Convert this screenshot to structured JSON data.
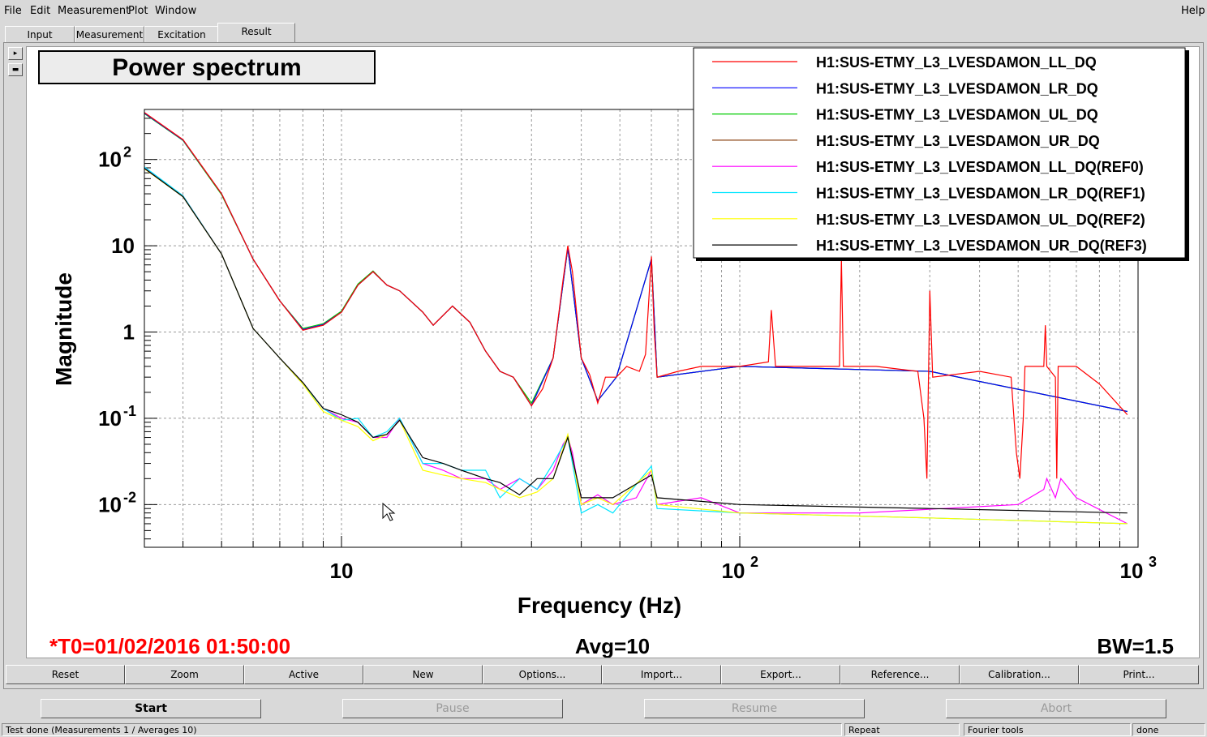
{
  "menubar": {
    "items": [
      "File",
      "Edit",
      "Measurement",
      "Plot",
      "Window"
    ],
    "help": "Help"
  },
  "tabs": [
    "Input",
    "Measurement",
    "Excitation",
    "Result"
  ],
  "active_tab": "Result",
  "plot": {
    "title": "Power spectrum",
    "xlabel": "Frequency (Hz)",
    "ylabel": "Magnitude",
    "t0": "*T0=01/02/2016 01:50:00",
    "avg": "Avg=10",
    "bw": "BW=1.5",
    "colors": {
      "t0": "#ff0000"
    }
  },
  "legend": [
    {
      "name": "H1:SUS-ETMY_L3_LVESDAMON_LL_DQ",
      "color": "#ff0000"
    },
    {
      "name": "H1:SUS-ETMY_L3_LVESDAMON_LR_DQ",
      "color": "#0000ff"
    },
    {
      "name": "H1:SUS-ETMY_L3_LVESDAMON_UL_DQ",
      "color": "#00cc00"
    },
    {
      "name": "H1:SUS-ETMY_L3_LVESDAMON_UR_DQ",
      "color": "#8b4513"
    },
    {
      "name": "H1:SUS-ETMY_L3_LVESDAMON_LL_DQ(REF0)",
      "color": "#ff00ff"
    },
    {
      "name": "H1:SUS-ETMY_L3_LVESDAMON_LR_DQ(REF1)",
      "color": "#00e5ff"
    },
    {
      "name": "H1:SUS-ETMY_L3_LVESDAMON_UL_DQ(REF2)",
      "color": "#ffff00"
    },
    {
      "name": "H1:SUS-ETMY_L3_LVESDAMON_UR_DQ(REF3)",
      "color": "#000000"
    }
  ],
  "chart_data": {
    "type": "line",
    "xscale": "log",
    "yscale": "log",
    "xlim": [
      3.2,
      1000
    ],
    "ylim": [
      0.0032,
      380
    ],
    "x_ticks": [
      {
        "v": 10,
        "label": "10"
      },
      {
        "v": 100,
        "label": "10",
        "sup": "2"
      },
      {
        "v": 1000,
        "label": "10",
        "sup": "3"
      }
    ],
    "y_ticks": [
      {
        "v": 0.01,
        "label": "10",
        "sup": "-2"
      },
      {
        "v": 0.1,
        "label": "10",
        "sup": "-1"
      },
      {
        "v": 1,
        "label": "1"
      },
      {
        "v": 10,
        "label": "10"
      },
      {
        "v": 100,
        "label": "10",
        "sup": "2"
      }
    ],
    "grid": true,
    "legend_position": "top-right",
    "series": [
      {
        "name": "H1:SUS-ETMY_L3_LVESDAMON_LL_DQ",
        "group": "live",
        "points": [
          [
            3.2,
            350
          ],
          [
            4,
            170
          ],
          [
            5,
            40
          ],
          [
            6,
            7
          ],
          [
            7,
            2.3
          ],
          [
            8,
            1.05
          ],
          [
            9,
            1.2
          ],
          [
            10,
            1.7
          ],
          [
            11,
            3.5
          ],
          [
            12,
            5
          ],
          [
            13,
            3.5
          ],
          [
            14,
            3
          ],
          [
            16,
            1.7
          ],
          [
            17,
            1.2
          ],
          [
            19,
            2
          ],
          [
            21,
            1.3
          ],
          [
            23,
            0.6
          ],
          [
            25,
            0.35
          ],
          [
            27,
            0.3
          ],
          [
            30,
            0.14
          ],
          [
            32,
            0.22
          ],
          [
            34,
            0.5
          ],
          [
            36,
            4
          ],
          [
            37,
            10
          ],
          [
            38,
            5
          ],
          [
            40,
            0.5
          ],
          [
            42,
            0.32
          ],
          [
            44,
            0.15
          ],
          [
            46,
            0.3
          ],
          [
            49,
            0.3
          ],
          [
            52,
            0.4
          ],
          [
            56,
            0.35
          ],
          [
            58,
            0.55
          ],
          [
            60,
            7.5
          ],
          [
            61,
            1
          ],
          [
            62,
            0.3
          ],
          [
            70,
            0.35
          ],
          [
            80,
            0.4
          ],
          [
            100,
            0.4
          ],
          [
            118,
            0.45
          ],
          [
            120,
            1.8
          ],
          [
            123,
            0.4
          ],
          [
            150,
            0.4
          ],
          [
            178,
            0.4
          ],
          [
            180,
            7
          ],
          [
            182,
            0.4
          ],
          [
            220,
            0.4
          ],
          [
            280,
            0.35
          ],
          [
            290,
            0.1
          ],
          [
            295,
            0.02
          ],
          [
            300,
            3.0
          ],
          [
            305,
            0.3
          ],
          [
            400,
            0.35
          ],
          [
            480,
            0.3
          ],
          [
            495,
            0.04
          ],
          [
            505,
            0.02
          ],
          [
            515,
            0.1
          ],
          [
            520,
            0.4
          ],
          [
            580,
            0.4
          ],
          [
            585,
            1.2
          ],
          [
            590,
            0.4
          ],
          [
            620,
            0.3
          ],
          [
            625,
            0.02
          ],
          [
            630,
            0.4
          ],
          [
            700,
            0.4
          ],
          [
            800,
            0.25
          ],
          [
            940,
            0.11
          ]
        ]
      },
      {
        "name": "H1:SUS-ETMY_L3_LVESDAMON_LR_DQ",
        "group": "live",
        "points": [
          [
            3.2,
            345
          ],
          [
            4,
            168
          ],
          [
            5,
            40
          ],
          [
            6,
            7
          ],
          [
            7,
            2.3
          ],
          [
            8,
            1.07
          ],
          [
            9,
            1.22
          ],
          [
            10,
            1.7
          ],
          [
            11,
            3.5
          ],
          [
            12,
            5
          ],
          [
            13,
            3.5
          ],
          [
            14,
            3
          ],
          [
            16,
            1.7
          ],
          [
            17,
            1.2
          ],
          [
            19,
            2
          ],
          [
            21,
            1.3
          ],
          [
            23,
            0.6
          ],
          [
            25,
            0.35
          ],
          [
            27,
            0.3
          ],
          [
            30,
            0.14
          ],
          [
            34,
            0.5
          ],
          [
            37,
            9.5
          ],
          [
            40,
            0.5
          ],
          [
            44,
            0.16
          ],
          [
            49,
            0.3
          ],
          [
            60,
            7
          ],
          [
            62,
            0.3
          ],
          [
            100,
            0.4
          ],
          [
            300,
            0.35
          ],
          [
            940,
            0.12
          ]
        ]
      },
      {
        "name": "H1:SUS-ETMY_L3_LVESDAMON_UL_DQ",
        "group": "live",
        "points": [
          [
            3.2,
            340
          ],
          [
            4,
            166
          ],
          [
            5,
            39
          ],
          [
            6,
            7
          ],
          [
            7,
            2.3
          ],
          [
            8,
            1.1
          ],
          [
            9,
            1.25
          ],
          [
            10,
            1.75
          ],
          [
            11,
            3.6
          ],
          [
            12,
            5.1
          ],
          [
            13,
            3.5
          ],
          [
            14,
            3
          ],
          [
            16,
            1.7
          ],
          [
            17,
            1.2
          ],
          [
            19,
            2
          ],
          [
            21,
            1.3
          ],
          [
            23,
            0.6
          ],
          [
            25,
            0.35
          ],
          [
            27,
            0.3
          ],
          [
            30,
            0.15
          ],
          [
            34,
            0.5
          ],
          [
            37,
            9.5
          ],
          [
            40,
            0.5
          ],
          [
            44,
            0.16
          ],
          [
            49,
            0.3
          ],
          [
            60,
            7
          ],
          [
            62,
            0.3
          ],
          [
            100,
            0.4
          ],
          [
            300,
            0.35
          ],
          [
            940,
            0.12
          ]
        ]
      },
      {
        "name": "H1:SUS-ETMY_L3_LVESDAMON_UR_DQ",
        "group": "live",
        "points": [
          [
            3.2,
            348
          ],
          [
            4,
            169
          ],
          [
            5,
            40
          ],
          [
            6,
            7
          ],
          [
            7,
            2.3
          ],
          [
            8,
            1.06
          ],
          [
            9,
            1.2
          ],
          [
            10,
            1.7
          ],
          [
            11,
            3.5
          ],
          [
            12,
            5
          ],
          [
            13,
            3.5
          ],
          [
            14,
            3
          ],
          [
            16,
            1.7
          ],
          [
            17,
            1.2
          ],
          [
            19,
            2
          ],
          [
            21,
            1.3
          ],
          [
            23,
            0.6
          ],
          [
            25,
            0.35
          ],
          [
            27,
            0.3
          ],
          [
            30,
            0.14
          ],
          [
            34,
            0.5
          ],
          [
            37,
            9.5
          ],
          [
            40,
            0.5
          ],
          [
            44,
            0.16
          ],
          [
            49,
            0.3
          ],
          [
            60,
            7
          ],
          [
            62,
            0.3
          ],
          [
            100,
            0.4
          ],
          [
            300,
            0.35
          ],
          [
            940,
            0.12
          ]
        ]
      },
      {
        "name": "H1:SUS-ETMY_L3_LVESDAMON_LL_DQ(REF0)",
        "group": "ref",
        "points": [
          [
            3.2,
            80
          ],
          [
            4,
            38
          ],
          [
            5,
            8
          ],
          [
            6,
            1.1
          ],
          [
            7,
            0.5
          ],
          [
            8,
            0.25
          ],
          [
            9,
            0.13
          ],
          [
            10,
            0.1
          ],
          [
            11,
            0.09
          ],
          [
            12,
            0.06
          ],
          [
            13,
            0.06
          ],
          [
            14,
            0.1
          ],
          [
            16,
            0.03
          ],
          [
            18,
            0.025
          ],
          [
            20,
            0.02
          ],
          [
            23,
            0.02
          ],
          [
            25,
            0.015
          ],
          [
            28,
            0.02
          ],
          [
            31,
            0.015
          ],
          [
            34,
            0.025
          ],
          [
            36,
            0.05
          ],
          [
            37,
            0.06
          ],
          [
            38,
            0.04
          ],
          [
            40,
            0.01
          ],
          [
            44,
            0.013
          ],
          [
            48,
            0.01
          ],
          [
            55,
            0.012
          ],
          [
            60,
            0.025
          ],
          [
            62,
            0.01
          ],
          [
            80,
            0.012
          ],
          [
            100,
            0.008
          ],
          [
            200,
            0.008
          ],
          [
            500,
            0.01
          ],
          [
            580,
            0.015
          ],
          [
            590,
            0.02
          ],
          [
            620,
            0.012
          ],
          [
            640,
            0.02
          ],
          [
            700,
            0.012
          ],
          [
            940,
            0.006
          ]
        ]
      },
      {
        "name": "H1:SUS-ETMY_L3_LVESDAMON_LR_DQ(REF1)",
        "group": "ref",
        "points": [
          [
            3.2,
            82
          ],
          [
            4,
            38
          ],
          [
            5,
            8
          ],
          [
            6,
            1.1
          ],
          [
            7,
            0.5
          ],
          [
            8,
            0.25
          ],
          [
            9,
            0.13
          ],
          [
            10,
            0.095
          ],
          [
            11,
            0.1
          ],
          [
            12,
            0.06
          ],
          [
            13,
            0.07
          ],
          [
            14,
            0.1
          ],
          [
            16,
            0.03
          ],
          [
            18,
            0.03
          ],
          [
            20,
            0.025
          ],
          [
            23,
            0.025
          ],
          [
            25,
            0.012
          ],
          [
            28,
            0.02
          ],
          [
            31,
            0.015
          ],
          [
            34,
            0.03
          ],
          [
            37,
            0.06
          ],
          [
            40,
            0.008
          ],
          [
            44,
            0.01
          ],
          [
            48,
            0.008
          ],
          [
            60,
            0.028
          ],
          [
            62,
            0.009
          ],
          [
            100,
            0.008
          ],
          [
            300,
            0.007
          ],
          [
            940,
            0.006
          ]
        ]
      },
      {
        "name": "H1:SUS-ETMY_L3_LVESDAMON_UL_DQ(REF2)",
        "group": "ref",
        "points": [
          [
            3.2,
            78
          ],
          [
            4,
            37
          ],
          [
            5,
            8
          ],
          [
            6,
            1.1
          ],
          [
            7,
            0.5
          ],
          [
            8,
            0.25
          ],
          [
            9,
            0.12
          ],
          [
            10,
            0.095
          ],
          [
            11,
            0.08
          ],
          [
            12,
            0.055
          ],
          [
            13,
            0.065
          ],
          [
            14,
            0.095
          ],
          [
            16,
            0.025
          ],
          [
            18,
            0.022
          ],
          [
            20,
            0.02
          ],
          [
            23,
            0.018
          ],
          [
            25,
            0.015
          ],
          [
            28,
            0.012
          ],
          [
            31,
            0.014
          ],
          [
            34,
            0.02
          ],
          [
            37,
            0.065
          ],
          [
            40,
            0.01
          ],
          [
            44,
            0.012
          ],
          [
            48,
            0.01
          ],
          [
            60,
            0.025
          ],
          [
            62,
            0.01
          ],
          [
            100,
            0.008
          ],
          [
            300,
            0.007
          ],
          [
            940,
            0.006
          ]
        ]
      },
      {
        "name": "H1:SUS-ETMY_L3_LVESDAMON_UR_DQ(REF3)",
        "group": "ref",
        "points": [
          [
            3.2,
            79
          ],
          [
            4,
            37
          ],
          [
            5,
            8
          ],
          [
            6,
            1.1
          ],
          [
            7,
            0.5
          ],
          [
            8,
            0.26
          ],
          [
            9,
            0.13
          ],
          [
            10,
            0.11
          ],
          [
            11,
            0.09
          ],
          [
            12,
            0.06
          ],
          [
            13,
            0.065
          ],
          [
            14,
            0.095
          ],
          [
            16,
            0.035
          ],
          [
            18,
            0.03
          ],
          [
            20,
            0.025
          ],
          [
            23,
            0.02
          ],
          [
            25,
            0.018
          ],
          [
            28,
            0.013
          ],
          [
            31,
            0.02
          ],
          [
            34,
            0.02
          ],
          [
            37,
            0.06
          ],
          [
            40,
            0.012
          ],
          [
            44,
            0.012
          ],
          [
            48,
            0.012
          ],
          [
            60,
            0.022
          ],
          [
            62,
            0.012
          ],
          [
            100,
            0.01
          ],
          [
            300,
            0.009
          ],
          [
            940,
            0.008
          ]
        ]
      }
    ]
  },
  "buttons": [
    "Reset",
    "Zoom",
    "Active",
    "New",
    "Options...",
    "Import...",
    "Export...",
    "Reference...",
    "Calibration...",
    "Print..."
  ],
  "controls": [
    {
      "label": "Start",
      "enabled": true
    },
    {
      "label": "Pause",
      "enabled": false
    },
    {
      "label": "Resume",
      "enabled": false
    },
    {
      "label": "Abort",
      "enabled": false
    }
  ],
  "status": {
    "message": "Test done (Measurements 1 / Averages 10)",
    "repeat": "Repeat",
    "tools": "Fourier tools",
    "state": "done"
  }
}
